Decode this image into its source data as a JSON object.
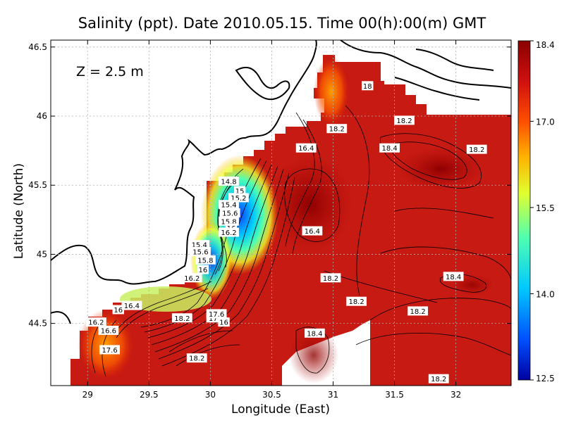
{
  "title": "Salinity (ppt). Date 2010.05.15. Time 00(h):00(m) GMT",
  "depth_label": "Z  =  2.5  m",
  "x_axis": {
    "label": "Longitude (East)",
    "range": [
      28.7,
      32.45
    ],
    "ticks": [
      29,
      29.5,
      30,
      30.5,
      31,
      31.5,
      32
    ],
    "tick_labels": [
      "29",
      "29.5",
      "30",
      "30.5",
      "31",
      "31.5",
      "32"
    ]
  },
  "y_axis": {
    "label": "Latitude (North)",
    "range": [
      44.05,
      46.55
    ],
    "ticks": [
      44.5,
      45,
      45.5,
      46,
      46.5
    ],
    "tick_labels": [
      "44.5",
      "45",
      "45.5",
      "46",
      "46.5"
    ]
  },
  "colorbar": {
    "range": [
      12.5,
      18.4
    ],
    "ticks": [
      12.5,
      14.0,
      15.5,
      17.0,
      18.4
    ],
    "tick_labels": [
      "12.5",
      "14.0",
      "15.5",
      "17.0",
      "18.4"
    ],
    "colors": [
      "#0000a0",
      "#0050ff",
      "#00c8ff",
      "#50ffb0",
      "#e0ff30",
      "#ffb000",
      "#ff5000",
      "#d01010",
      "#8a0000"
    ]
  },
  "colors": {
    "sea_dominant": "#c61a12",
    "land": "#ffffff",
    "grid": "#b0b0b0"
  },
  "chart_data": {
    "type": "heatmap",
    "contour_labels": [
      {
        "text": "18",
        "lon": 31.28,
        "lat": 46.22
      },
      {
        "text": "18.2",
        "lon": 31.58,
        "lat": 45.97
      },
      {
        "text": "18.2",
        "lon": 31.03,
        "lat": 45.91
      },
      {
        "text": "16.4",
        "lon": 30.78,
        "lat": 45.77
      },
      {
        "text": "18.4",
        "lon": 31.46,
        "lat": 45.77
      },
      {
        "text": "18.2",
        "lon": 32.17,
        "lat": 45.76
      },
      {
        "text": "14.8",
        "lon": 30.15,
        "lat": 45.53
      },
      {
        "text": "15",
        "lon": 30.24,
        "lat": 45.46
      },
      {
        "text": "15.2",
        "lon": 30.23,
        "lat": 45.41
      },
      {
        "text": "15.4",
        "lon": 30.15,
        "lat": 45.36
      },
      {
        "text": "15.6",
        "lon": 30.16,
        "lat": 45.3
      },
      {
        "text": "15.8",
        "lon": 30.15,
        "lat": 45.24
      },
      {
        "text": "16",
        "lon": 30.17,
        "lat": 45.19
      },
      {
        "text": "16.2",
        "lon": 30.15,
        "lat": 45.16
      },
      {
        "text": "16.4",
        "lon": 30.83,
        "lat": 45.17
      },
      {
        "text": "15.4",
        "lon": 29.91,
        "lat": 45.07
      },
      {
        "text": "15.6",
        "lon": 29.92,
        "lat": 45.02
      },
      {
        "text": "15.8",
        "lon": 29.96,
        "lat": 44.96
      },
      {
        "text": "16",
        "lon": 29.94,
        "lat": 44.89
      },
      {
        "text": "16.2",
        "lon": 29.85,
        "lat": 44.83
      },
      {
        "text": "18.2",
        "lon": 30.98,
        "lat": 44.83
      },
      {
        "text": "18.4",
        "lon": 31.98,
        "lat": 44.84
      },
      {
        "text": "18.2",
        "lon": 31.19,
        "lat": 44.66
      },
      {
        "text": "16.4",
        "lon": 29.36,
        "lat": 44.63
      },
      {
        "text": "16",
        "lon": 29.25,
        "lat": 44.6
      },
      {
        "text": "18.2",
        "lon": 31.69,
        "lat": 44.59
      },
      {
        "text": "16.2",
        "lon": 29.07,
        "lat": 44.51
      },
      {
        "text": "18.2",
        "lon": 29.77,
        "lat": 44.54
      },
      {
        "text": "17.8",
        "lon": 30.05,
        "lat": 44.54
      },
      {
        "text": "17.6",
        "lon": 30.05,
        "lat": 44.57
      },
      {
        "text": "16",
        "lon": 30.11,
        "lat": 44.51
      },
      {
        "text": "16.6",
        "lon": 29.17,
        "lat": 44.45
      },
      {
        "text": "18.4",
        "lon": 30.85,
        "lat": 44.43
      },
      {
        "text": "17.6",
        "lon": 29.18,
        "lat": 44.31
      },
      {
        "text": "18.2",
        "lon": 29.89,
        "lat": 44.25
      },
      {
        "text": "18.2",
        "lon": 31.86,
        "lat": 44.1
      }
    ]
  }
}
